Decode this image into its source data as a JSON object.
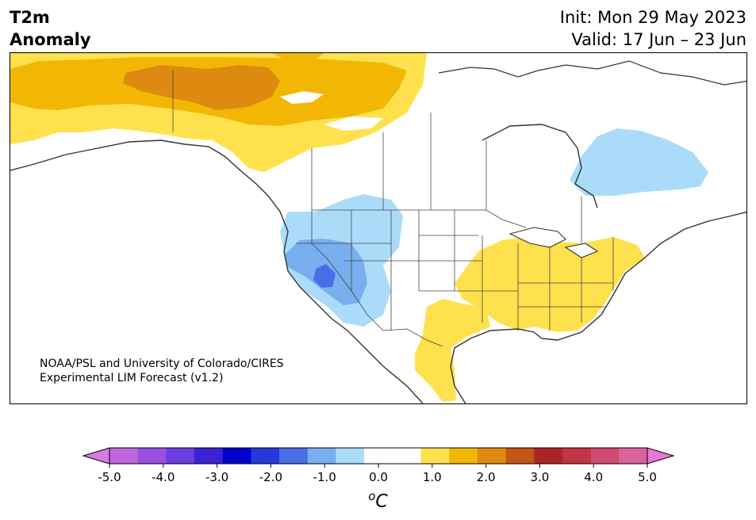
{
  "header": {
    "variable": "T2m",
    "field": "Anomaly",
    "init": "Init: Mon 29 May 2023",
    "valid": "Valid: 17 Jun – 23 Jun"
  },
  "map": {
    "credit_line1": "NOAA/PSL and University of Colorado/CIRES",
    "credit_line2": "Experimental LIM Forecast (v1.2)",
    "anomaly_regions": [
      {
        "region": "Alaska / Yukon / NW Canada",
        "anomaly_c": "+1.0 to +2.0"
      },
      {
        "region": "Western US / Great Basin",
        "anomaly_c": "-0.5 to -2.0"
      },
      {
        "region": "Hudson Bay / Quebec",
        "anomaly_c": "-0.5 to -1.0"
      },
      {
        "region": "Eastern US / Southeast",
        "anomaly_c": "+0.5 to +1.0"
      },
      {
        "region": "Texas / Northern Mexico",
        "anomaly_c": "+0.5 to +1.0"
      }
    ]
  },
  "colorbar": {
    "unit": "oC",
    "unit_base": "C",
    "unit_sup": "o",
    "ticks": [
      "-5.0",
      "-4.0",
      "-3.0",
      "-2.0",
      "-1.0",
      "0.0",
      "1.0",
      "2.0",
      "3.0",
      "4.0",
      "5.0"
    ],
    "colors": {
      "low_extend": "#d67ae6",
      "high_extend": "#e878d6",
      "bins": [
        "#c066e0",
        "#9a4fe0",
        "#6a3ee0",
        "#3a22d6",
        "#0000cc",
        "#2438dc",
        "#4a6ee6",
        "#77afef",
        "#aadcfa",
        "#ffffff",
        "#ffffff",
        "#ffe14d",
        "#f2b705",
        "#de8a10",
        "#c45514",
        "#aa2626",
        "#c23446",
        "#d04b72",
        "#db649e"
      ]
    }
  }
}
